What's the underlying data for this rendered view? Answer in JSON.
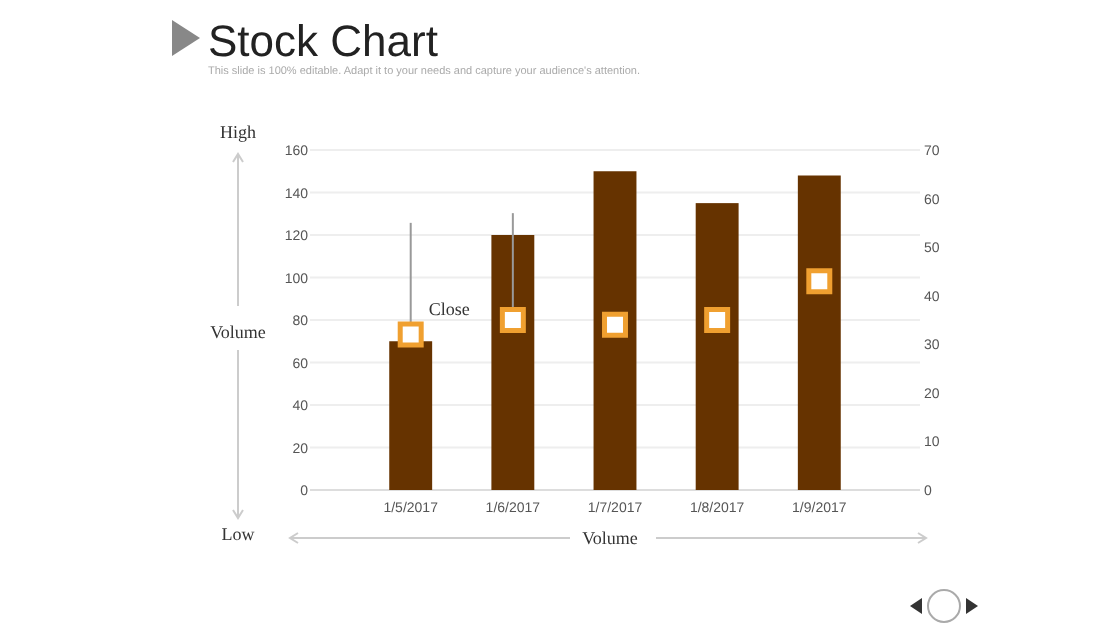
{
  "chart_data": {
    "type": "bar",
    "title": "Stock Chart",
    "subtitle": "This slide is 100% editable. Adapt it to your needs and capture your audience's attention.",
    "categories": [
      "1/5/2017",
      "1/6/2017",
      "1/7/2017",
      "1/8/2017",
      "1/9/2017"
    ],
    "xlabel": "Volume",
    "ylabel": "Volume",
    "annotations": [
      "High",
      "Low"
    ],
    "series": [
      {
        "color": "#663300",
        "values": [
          70,
          120,
          150,
          135,
          148
        ]
      },
      {
        "type": "scatter",
        "name": "Close",
        "axis": "y2",
        "color": "#f0a030",
        "values": [
          32,
          35,
          34,
          35,
          43
        ],
        "errors": [
          [
            32,
            55
          ],
          [
            35,
            57
          ],
          null,
          null,
          null
        ]
      }
    ],
    "ylim": [
      0,
      160
    ],
    "yticks": [
      0,
      20,
      40,
      60,
      80,
      100,
      120,
      140,
      160
    ],
    "y2lim": [
      0,
      70
    ],
    "y2ticks": [
      0,
      10,
      20,
      30,
      40,
      50,
      60,
      70
    ],
    "grid": "y",
    "marker": "square"
  }
}
